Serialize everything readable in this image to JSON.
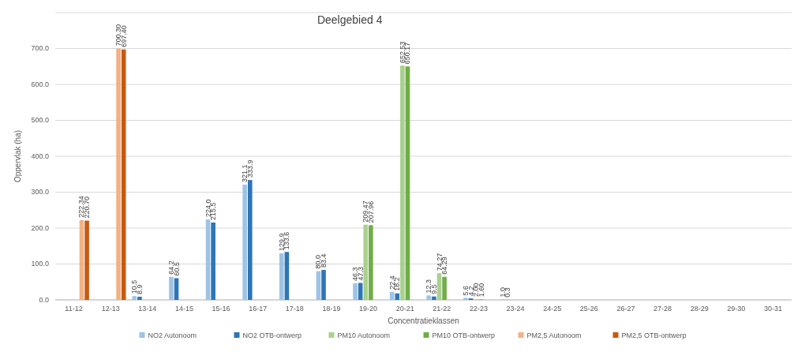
{
  "chart_data": {
    "type": "bar",
    "title": "Deelgebied 4",
    "xlabel": "Concentratieklassen",
    "ylabel": "Oppervlak (ha)",
    "categories": [
      "11-12",
      "12-13",
      "13-14",
      "14-15",
      "15-16",
      "16-17",
      "17-18",
      "18-19",
      "19-20",
      "20-21",
      "21-22",
      "22-23",
      "23-24",
      "24-25",
      "25-26",
      "26-27",
      "27-28",
      "28-29",
      "29-30",
      "30-31"
    ],
    "series": [
      {
        "name": "NO2 Autonoom",
        "color": "#9dc3e6",
        "values": [
          null,
          null,
          10.5,
          64.2,
          224.0,
          321.1,
          129.9,
          80.0,
          46.3,
          22.4,
          12.3,
          5.6,
          1.0,
          null,
          null,
          null,
          null,
          null,
          null,
          null
        ],
        "value_labels": [
          null,
          null,
          "10.5",
          "64.2",
          "224.0",
          "321.1",
          "129.9",
          "80.0",
          "46.3",
          "22.4",
          "12.3",
          "5.6",
          "1.0",
          null,
          null,
          null,
          null,
          null,
          null,
          null
        ]
      },
      {
        "name": "NO2 OTB-ontwerp",
        "color": "#2e75b6",
        "values": [
          null,
          null,
          8.9,
          60.5,
          215.5,
          333.9,
          133.6,
          83.4,
          47.3,
          18.2,
          9.5,
          4.2,
          0.3,
          null,
          null,
          null,
          null,
          null,
          null,
          null
        ],
        "value_labels": [
          null,
          null,
          "8.9",
          "60.5",
          "215.5",
          "333.9",
          "133.6",
          "83.4",
          "47.3",
          "18.2",
          "9.5",
          "4.2",
          "0.3",
          null,
          null,
          null,
          null,
          null,
          null,
          null
        ]
      },
      {
        "name": "PM10 Autonoom",
        "color": "#a9d18e",
        "values": [
          null,
          null,
          null,
          null,
          null,
          null,
          null,
          null,
          209.47,
          652.53,
          74.27,
          2.0,
          null,
          null,
          null,
          null,
          null,
          null,
          null,
          null
        ],
        "value_labels": [
          null,
          null,
          null,
          null,
          null,
          null,
          null,
          null,
          "209.47",
          "652.53",
          "74.27",
          "2.00",
          null,
          null,
          null,
          null,
          null,
          null,
          null,
          null
        ]
      },
      {
        "name": "PM10 OTB-ontwerp",
        "color": "#70ad47",
        "values": [
          null,
          null,
          null,
          null,
          null,
          null,
          null,
          null,
          207.96,
          650.17,
          64.29,
          1.6,
          null,
          null,
          null,
          null,
          null,
          null,
          null,
          null
        ],
        "value_labels": [
          null,
          null,
          null,
          null,
          null,
          null,
          null,
          null,
          "207.96",
          "650.17",
          "64.29",
          "1.60",
          null,
          null,
          null,
          null,
          null,
          null,
          null,
          null
        ]
      },
      {
        "name": "PM2,5 Autonoom",
        "color": "#f4b183",
        "values": [
          222.34,
          700.3,
          null,
          null,
          null,
          null,
          null,
          null,
          null,
          null,
          null,
          null,
          null,
          null,
          null,
          null,
          null,
          null,
          null,
          null
        ],
        "value_labels": [
          "222.34",
          "700.30",
          null,
          null,
          null,
          null,
          null,
          null,
          null,
          null,
          null,
          null,
          null,
          null,
          null,
          null,
          null,
          null,
          null,
          null
        ]
      },
      {
        "name": "PM2,5 OTB-ontwerp",
        "color": "#c55a11",
        "values": [
          220.7,
          697.4,
          null,
          null,
          null,
          null,
          null,
          null,
          null,
          null,
          null,
          null,
          null,
          null,
          null,
          null,
          null,
          null,
          null,
          null
        ],
        "value_labels": [
          "220.70",
          "697.40",
          null,
          null,
          null,
          null,
          null,
          null,
          null,
          null,
          null,
          null,
          null,
          null,
          null,
          null,
          null,
          null,
          null,
          null
        ]
      }
    ],
    "ylim": [
      0,
      800
    ],
    "yticks": [
      {
        "value": 0,
        "label": "0.0"
      },
      {
        "value": 100,
        "label": "100.0"
      },
      {
        "value": 200,
        "label": "200.0"
      },
      {
        "value": 300,
        "label": "300.0"
      },
      {
        "value": 400,
        "label": "400.0"
      },
      {
        "value": 500,
        "label": "500.0"
      },
      {
        "value": 600,
        "label": "600.0"
      },
      {
        "value": 700,
        "label": "700.0"
      },
      {
        "value": 800,
        "label": null
      }
    ],
    "grid": "y",
    "legend": "bottom"
  }
}
